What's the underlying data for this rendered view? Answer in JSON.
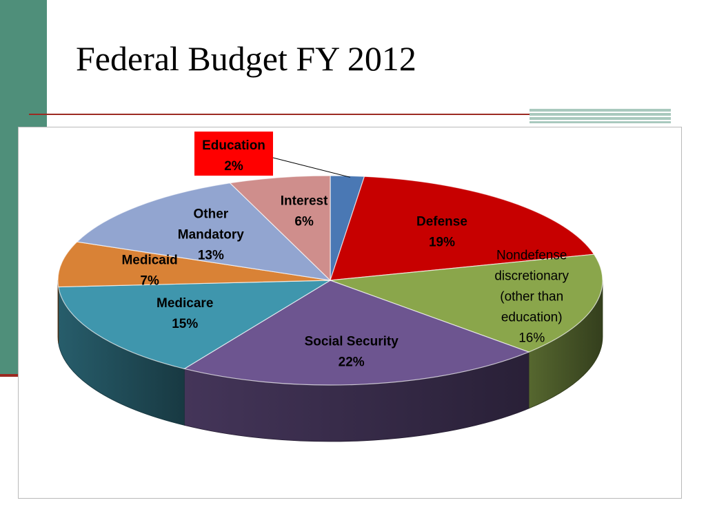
{
  "slide": {
    "title": "Federal Budget FY 2012"
  },
  "colors": {
    "frame_bar": "#4f8f7a",
    "rule": "#9c2a22",
    "education_callout_bg": "#ff0000"
  },
  "chart_data": {
    "type": "pie",
    "title": "",
    "slices": [
      {
        "name": "Education",
        "lines": [
          "Education",
          "2%"
        ],
        "value": 2,
        "color": "#4a78b4",
        "callout": true
      },
      {
        "name": "Defense",
        "lines": [
          "Defense",
          "19%"
        ],
        "value": 19,
        "color": "#c70000"
      },
      {
        "name": "Nondefense discretionary (other than education)",
        "lines": [
          "Nondefense",
          "discretionary",
          "(other than",
          "education)",
          "16%"
        ],
        "value": 16,
        "color": "#8aa64b"
      },
      {
        "name": "Social Security",
        "lines": [
          "Social Security",
          "22%"
        ],
        "value": 22,
        "color": "#6d5590"
      },
      {
        "name": "Medicare",
        "lines": [
          "Medicare",
          "15%"
        ],
        "value": 15,
        "color": "#3f96ad"
      },
      {
        "name": "Medicaid",
        "lines": [
          "Medicaid",
          "7%"
        ],
        "value": 7,
        "color": "#d98236"
      },
      {
        "name": "Other Mandatory",
        "lines": [
          "Other",
          "Mandatory",
          "13%"
        ],
        "value": 13,
        "color": "#92a5d0"
      },
      {
        "name": "Interest",
        "lines": [
          "Interest",
          "6%"
        ],
        "value": 6,
        "color": "#cf8e8c"
      }
    ]
  }
}
